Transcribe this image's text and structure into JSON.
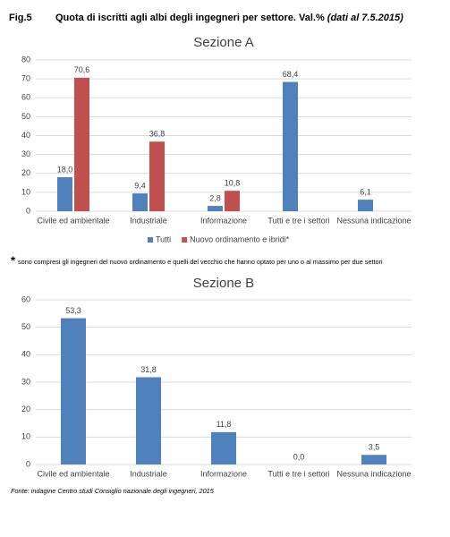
{
  "fig_label": "Fig.5",
  "fig_title": "Quota di iscritti agli albi degli ingegneri per settore. Val.%",
  "fig_date": "(dati al 7.5.2015)",
  "footnote_mark": "*",
  "footnote": "sono compresi gli ingegneri del nuovo ordinamento e quelli del vecchio che hanno optato per uno o al massimo per due settori",
  "source": "Fonte: indagine Centro studi Consiglio nazionale degli ingegneri, 2015",
  "chart_data": [
    {
      "type": "bar",
      "title": "Sezione A",
      "categories": [
        "Civile ed ambientale",
        "Industriale",
        "Informazione",
        "Tutti e tre i settori",
        "Nessuna indicazione"
      ],
      "series": [
        {
          "name": "Tutti",
          "color": "#4f81bd",
          "values": [
            18.0,
            9.4,
            2.8,
            68.4,
            6.1
          ],
          "value_labels": [
            "18,0",
            "9,4",
            "2,8",
            "68,4",
            "6,1"
          ]
        },
        {
          "name": "Nuovo ordinamento e ibridi*",
          "color": "#c0504d",
          "values": [
            70.6,
            36.8,
            10.8,
            null,
            null
          ],
          "value_labels": [
            "70,6",
            "36,8",
            "10,8",
            null,
            null
          ]
        }
      ],
      "ylim": [
        0,
        80
      ],
      "yticks": [
        0,
        10,
        20,
        30,
        40,
        50,
        60,
        70,
        80
      ],
      "grid": true,
      "legend": "bottom"
    },
    {
      "type": "bar",
      "title": "Sezione B",
      "categories": [
        "Civile ed ambientale",
        "Industriale",
        "Informazione",
        "Tutti e tre i settori",
        "Nessuna indicazione"
      ],
      "values": [
        53.3,
        31.8,
        11.8,
        0.0,
        3.5
      ],
      "value_labels": [
        "53,3",
        "31,8",
        "11,8",
        "0,0",
        "3,5"
      ],
      "color": "#4f81bd",
      "ylim": [
        0,
        60
      ],
      "yticks": [
        0,
        10,
        20,
        30,
        40,
        50,
        60
      ],
      "grid": true
    }
  ]
}
